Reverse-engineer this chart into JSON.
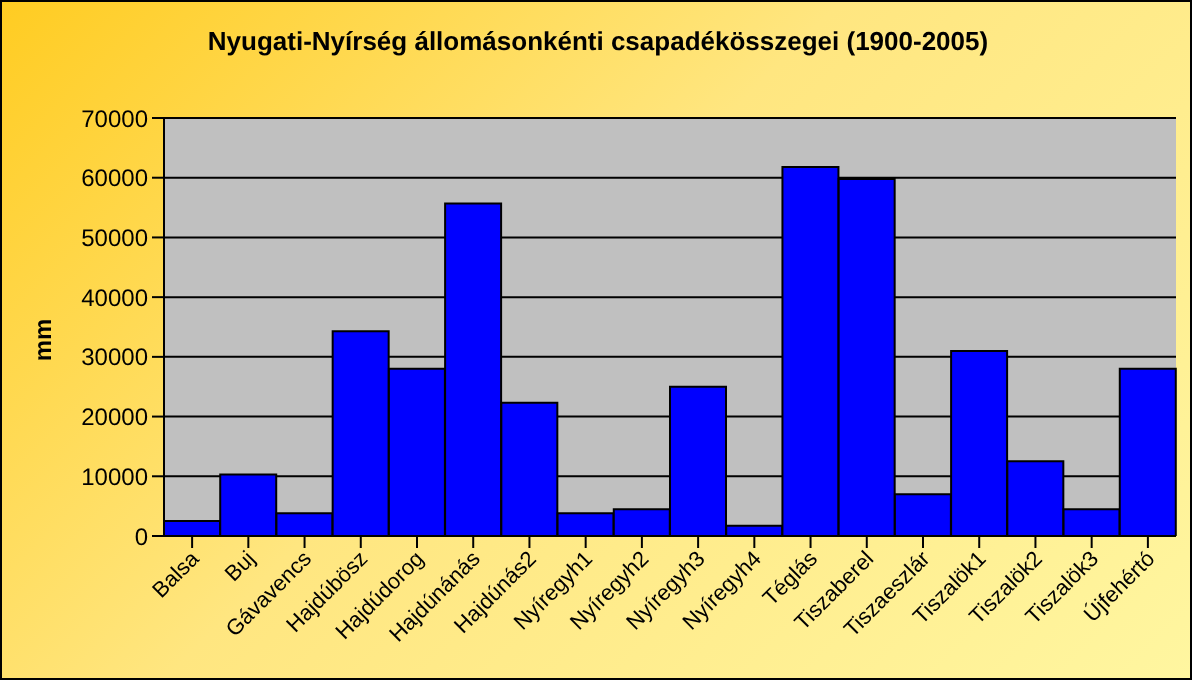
{
  "chart_data": {
    "type": "bar",
    "title": "Nyugati-Nyírség állomásonkénti csapadékösszegei (1900-2005)",
    "ylabel": "mm",
    "categories": [
      "Balsa",
      "Buj",
      "Gávavencs",
      "Hajdúbösz",
      "Hajdúdorog",
      "Hajdúnánás",
      "Hajdúnás2",
      "Nyíregyh1",
      "Nyíregyh2",
      "Nyíregyh3",
      "Nyíregyh4",
      "Téglás",
      "Tiszaberel",
      "Tiszaeszlár",
      "Tiszalök1",
      "Tiszalök2",
      "Tiszalök3",
      "Újfehértó"
    ],
    "values": [
      2500,
      10300,
      3800,
      34300,
      28000,
      55700,
      22300,
      3800,
      4500,
      25000,
      1700,
      61800,
      59800,
      7000,
      31000,
      12500,
      4500,
      28000
    ],
    "color": "#0000ff",
    "ylim": [
      0,
      70000
    ],
    "yticks": [
      0,
      10000,
      20000,
      30000,
      40000,
      50000,
      60000,
      70000
    ],
    "grid": "y",
    "legend": false
  }
}
